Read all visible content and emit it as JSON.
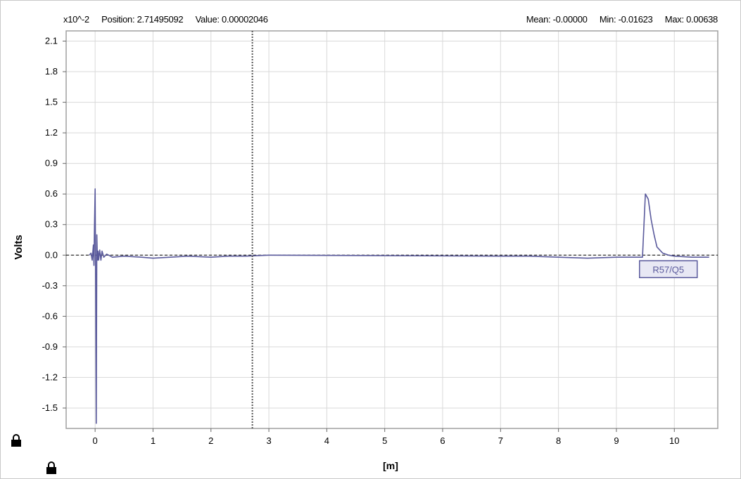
{
  "header": {
    "scale_label": "x10^-2",
    "position_label": "Position:",
    "position_value": "2.71495092",
    "value_label": "Value:",
    "value_value": "0.00002046",
    "mean_label": "Mean:",
    "mean_value": "-0.00000",
    "min_label": "Min:",
    "min_value": "-0.01623",
    "max_label": "Max:",
    "max_value": "0.00638"
  },
  "chart_data": {
    "type": "line",
    "title": "",
    "xlabel": "[m]",
    "ylabel": "Volts",
    "xlim": [
      -0.5,
      10.75
    ],
    "ylim": [
      -1.7,
      2.2
    ],
    "x_ticks": [
      0,
      1,
      2,
      3,
      4,
      5,
      6,
      7,
      8,
      9,
      10
    ],
    "y_ticks": [
      2.1,
      1.8,
      1.5,
      1.2,
      0.9,
      0.6,
      0.3,
      0.0,
      -0.3,
      -0.6,
      -0.9,
      -1.2,
      -1.5
    ],
    "y_tick_labels": [
      "2.1",
      "1.8",
      "1.5",
      "1.2",
      "0.9",
      "0.6",
      "0.3",
      "0.0",
      "-0.3",
      "-0.6",
      "-0.9",
      "-1.2",
      "-1.5"
    ],
    "grid": true,
    "cursor_x": 2.71495092,
    "baseline_y": 0.0,
    "marker_label": "R57/Q5",
    "marker_x": 9.52,
    "colors": {
      "trace": "#5a5a9c",
      "grid": "#d9d9d9",
      "cursor": "#555555",
      "axis_frame": "#a0a0a0"
    },
    "series": [
      {
        "x": [
          -0.1,
          -0.07,
          -0.05,
          -0.03,
          -0.02,
          -0.01,
          0.0,
          0.01,
          0.02,
          0.03,
          0.04,
          0.05,
          0.06,
          0.08,
          0.1,
          0.12,
          0.15,
          0.2,
          0.3,
          0.5,
          0.8,
          1.0,
          1.3,
          1.6,
          2.0,
          2.3,
          2.6,
          3.0,
          7.0,
          7.5,
          8.0,
          8.5,
          9.0,
          9.3,
          9.45,
          9.5,
          9.55,
          9.6,
          9.65,
          9.7,
          9.8,
          9.9,
          10.0,
          10.3,
          10.6
        ],
        "y": [
          0.0,
          0.02,
          -0.05,
          0.1,
          -0.1,
          0.3,
          0.65,
          -0.4,
          -1.65,
          0.2,
          -0.05,
          0.04,
          -0.05,
          0.05,
          -0.05,
          0.04,
          -0.02,
          0.01,
          -0.02,
          -0.01,
          -0.02,
          -0.03,
          -0.02,
          -0.01,
          -0.02,
          -0.01,
          -0.01,
          0.0,
          -0.01,
          -0.01,
          -0.02,
          -0.03,
          -0.02,
          -0.02,
          -0.02,
          0.6,
          0.55,
          0.35,
          0.2,
          0.08,
          0.02,
          0.0,
          -0.01,
          -0.02,
          -0.02
        ]
      }
    ]
  }
}
